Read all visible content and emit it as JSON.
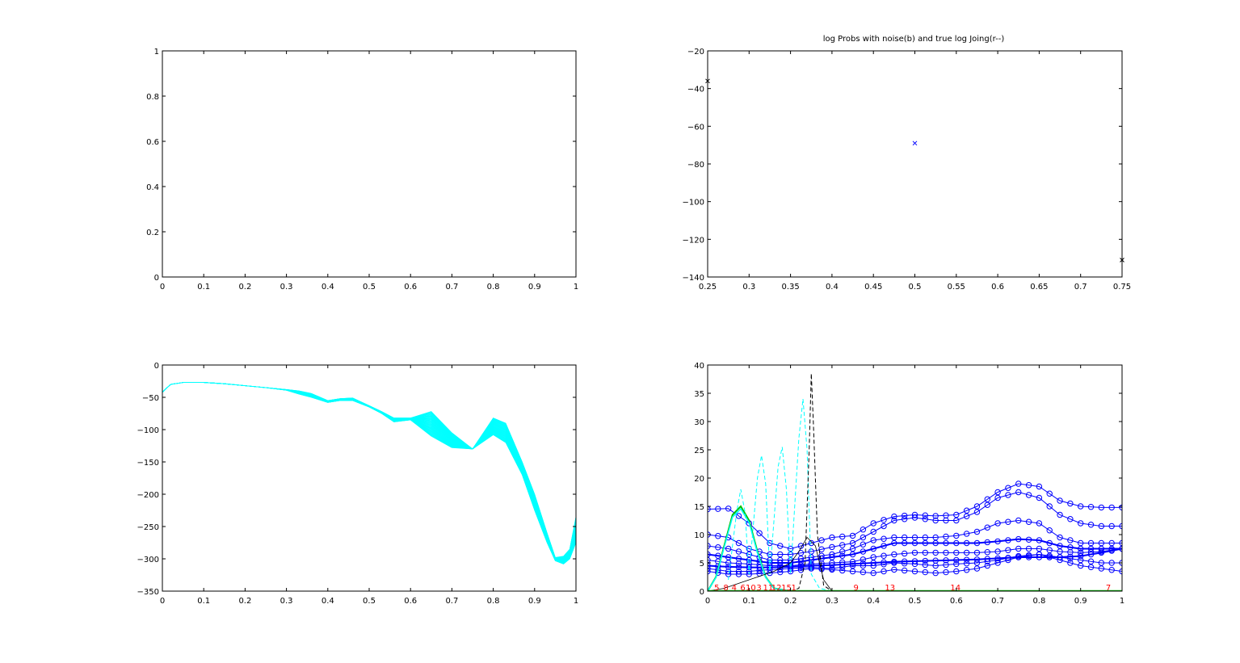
{
  "colors": {
    "axes": "#000000",
    "cyan": "#00ffff",
    "blue": "#0000ff",
    "green": "#00c000",
    "red": "#ff0000",
    "black": "#000000"
  },
  "chart_data": [
    {
      "id": "ax1",
      "type": "line",
      "title": "",
      "xlabel": "",
      "ylabel": "",
      "xlim": [
        0,
        1
      ],
      "ylim": [
        0,
        1
      ],
      "xticks": [
        0,
        0.1,
        0.2,
        0.3,
        0.4,
        0.5,
        0.6,
        0.7,
        0.8,
        0.9,
        1
      ],
      "xticklabels": [
        "0",
        "0.1",
        "0.2",
        "0.3",
        "0.4",
        "0.5",
        "0.6",
        "0.7",
        "0.8",
        "0.9",
        "1"
      ],
      "yticks": [
        0,
        0.2,
        0.4,
        0.6,
        0.8,
        1
      ],
      "yticklabels": [
        "0",
        "0.2",
        "0.4",
        "0.6",
        "0.8",
        "1"
      ],
      "grid": false,
      "series": []
    },
    {
      "id": "ax2",
      "type": "scatter",
      "title": "log Probs with noise(b) and true log Joing(r--)",
      "xlabel": "",
      "ylabel": "",
      "xlim": [
        0.25,
        0.75
      ],
      "ylim": [
        -140,
        -20
      ],
      "xticks": [
        0.25,
        0.3,
        0.35,
        0.4,
        0.45,
        0.5,
        0.55,
        0.6,
        0.65,
        0.7,
        0.75
      ],
      "xticklabels": [
        "0.25",
        "0.3",
        "0.35",
        "0.4",
        "0.45",
        "0.5",
        "0.55",
        "0.6",
        "0.65",
        "0.7",
        "0.75"
      ],
      "yticks": [
        -140,
        -120,
        -100,
        -80,
        -60,
        -40,
        -20
      ],
      "yticklabels": [
        "−140",
        "−120",
        "−100",
        "−80",
        "−60",
        "−40",
        "−20"
      ],
      "grid": false,
      "series": [
        {
          "color": "black",
          "marker": "x",
          "x": [
            0.25,
            0.75
          ],
          "y": [
            -36,
            -131
          ]
        },
        {
          "color": "blue",
          "marker": "x",
          "x": [
            0.5
          ],
          "y": [
            -69
          ]
        }
      ]
    },
    {
      "id": "ax3",
      "type": "line",
      "title": "",
      "xlabel": "",
      "ylabel": "",
      "xlim": [
        0,
        1
      ],
      "ylim": [
        -350,
        0
      ],
      "xticks": [
        0,
        0.1,
        0.2,
        0.3,
        0.4,
        0.5,
        0.6,
        0.7,
        0.8,
        0.9,
        1
      ],
      "xticklabels": [
        "0",
        "0.1",
        "0.2",
        "0.3",
        "0.4",
        "0.5",
        "0.6",
        "0.7",
        "0.8",
        "0.9",
        "1"
      ],
      "yticks": [
        -350,
        -300,
        -250,
        -200,
        -150,
        -100,
        -50,
        0
      ],
      "yticklabels": [
        "−350",
        "−300",
        "−250",
        "−200",
        "−150",
        "−100",
        "−50",
        "0"
      ],
      "grid": false,
      "band": {
        "color": "cyan",
        "count": 40,
        "x": [
          0,
          0.02,
          0.05,
          0.1,
          0.15,
          0.2,
          0.25,
          0.3,
          0.33,
          0.36,
          0.4,
          0.43,
          0.46,
          0.5,
          0.53,
          0.56,
          0.6,
          0.65,
          0.7,
          0.75,
          0.8,
          0.83,
          0.87,
          0.9,
          0.93,
          0.95,
          0.97,
          0.985,
          1
        ],
        "lower": [
          -42,
          -30,
          -27,
          -27,
          -29,
          -32,
          -35,
          -39,
          -45,
          -50,
          -58,
          -55,
          -55,
          -65,
          -75,
          -88,
          -85,
          -110,
          -128,
          -130,
          -108,
          -120,
          -170,
          -225,
          -275,
          -303,
          -308,
          -300,
          -275
        ],
        "upper": [
          -42,
          -30,
          -27,
          -27,
          -29,
          -32,
          -35,
          -38,
          -40,
          -44,
          -55,
          -52,
          -51,
          -63,
          -72,
          -82,
          -82,
          -72,
          -105,
          -130,
          -82,
          -90,
          -150,
          -200,
          -260,
          -298,
          -296,
          -285,
          -235
        ]
      }
    },
    {
      "id": "ax4",
      "type": "line",
      "title": "",
      "xlabel": "",
      "ylabel": "",
      "xlim": [
        0,
        1
      ],
      "ylim": [
        0,
        40
      ],
      "xticks": [
        0,
        0.1,
        0.2,
        0.3,
        0.4,
        0.5,
        0.6,
        0.7,
        0.8,
        0.9,
        1
      ],
      "xticklabels": [
        "0",
        "0.1",
        "0.2",
        "0.3",
        "0.4",
        "0.5",
        "0.6",
        "0.7",
        "0.8",
        "0.9",
        "1"
      ],
      "yticks": [
        0,
        5,
        10,
        15,
        20,
        25,
        30,
        35,
        40
      ],
      "yticklabels": [
        "0",
        "5",
        "10",
        "15",
        "20",
        "25",
        "30",
        "35",
        "40"
      ],
      "grid": false,
      "blue_curves": {
        "x": [
          0,
          0.05,
          0.1,
          0.15,
          0.2,
          0.25,
          0.3,
          0.35,
          0.4,
          0.45,
          0.5,
          0.55,
          0.6,
          0.65,
          0.7,
          0.75,
          0.8,
          0.85,
          0.9,
          0.95,
          1
        ],
        "series": [
          [
            14.5,
            14.6,
            12.0,
            8.5,
            7.5,
            8.5,
            9.5,
            9.8,
            12.0,
            13.2,
            13.5,
            13.3,
            13.5,
            15.0,
            17.5,
            19.0,
            18.5,
            16.0,
            15.0,
            14.8,
            14.8
          ],
          [
            10.0,
            9.5,
            7.5,
            6.5,
            6.5,
            7.0,
            7.8,
            8.5,
            10.5,
            12.5,
            13.0,
            12.5,
            12.5,
            14.0,
            16.5,
            17.5,
            16.5,
            13.5,
            12.0,
            11.5,
            11.5
          ],
          [
            8.0,
            7.5,
            6.5,
            5.5,
            5.5,
            6.0,
            6.5,
            7.5,
            9.0,
            9.5,
            9.5,
            9.5,
            9.8,
            10.5,
            12.0,
            12.5,
            12.0,
            9.5,
            8.5,
            8.5,
            8.5
          ],
          [
            6.5,
            6.0,
            5.5,
            5.0,
            5.0,
            5.5,
            6.0,
            6.5,
            7.5,
            8.5,
            8.5,
            8.5,
            8.5,
            8.5,
            8.8,
            9.2,
            9.0,
            8.0,
            7.5,
            7.5,
            7.5
          ],
          [
            5.5,
            5.0,
            4.8,
            4.5,
            4.5,
            4.8,
            5.0,
            5.2,
            6.0,
            6.5,
            6.8,
            6.8,
            6.8,
            6.8,
            7.0,
            7.5,
            7.5,
            7.0,
            6.8,
            7.0,
            7.5
          ],
          [
            4.5,
            4.3,
            4.2,
            4.2,
            4.3,
            4.5,
            4.6,
            4.8,
            5.0,
            5.2,
            5.3,
            5.4,
            5.5,
            5.6,
            5.8,
            6.0,
            6.0,
            6.0,
            6.2,
            6.8,
            7.5
          ],
          [
            4.0,
            3.5,
            3.5,
            3.8,
            4.0,
            4.2,
            4.0,
            4.5,
            4.5,
            5.0,
            4.8,
            4.5,
            4.8,
            5.0,
            5.5,
            6.2,
            6.5,
            6.0,
            5.5,
            5.0,
            5.0
          ],
          [
            3.5,
            3.0,
            3.0,
            3.2,
            3.5,
            4.0,
            3.8,
            3.5,
            3.2,
            3.8,
            3.5,
            3.2,
            3.5,
            4.0,
            5.0,
            6.0,
            6.5,
            5.5,
            4.5,
            4.0,
            3.5
          ]
        ]
      },
      "green_curve": {
        "color": "green",
        "x": [
          0,
          0.02,
          0.04,
          0.06,
          0.08,
          0.1,
          0.12,
          0.14,
          0.16,
          0.2,
          1
        ],
        "y": [
          0,
          2.5,
          8,
          13.5,
          15,
          12.5,
          7,
          2.5,
          0.5,
          0,
          0
        ]
      },
      "cyan_dashed": {
        "color": "cyan",
        "x": [
          0.05,
          0.07,
          0.08,
          0.09,
          0.1,
          0.12,
          0.13,
          0.14,
          0.15,
          0.17,
          0.18,
          0.19,
          0.2,
          0.22,
          0.23,
          0.24,
          0.25,
          0.27,
          0.3
        ],
        "y": [
          2,
          14,
          18,
          14,
          3,
          20,
          24,
          19,
          3,
          22,
          25.5,
          18,
          3,
          27,
          34,
          25,
          3,
          0.5,
          0
        ]
      },
      "black_dashed": {
        "color": "black",
        "x": [
          0.2,
          0.22,
          0.235,
          0.245,
          0.25,
          0.255,
          0.265,
          0.28,
          0.3
        ],
        "y": [
          0,
          0.5,
          5,
          25,
          38.5,
          30,
          10,
          1,
          0
        ]
      },
      "black_solid": {
        "color": "black",
        "x": [
          0.0,
          0.04,
          0.08,
          0.12,
          0.16,
          0.2,
          0.22,
          0.24,
          0.26,
          0.28,
          0.3
        ],
        "y": [
          0,
          0.5,
          1.5,
          2.5,
          3.5,
          5,
          7,
          9.5,
          8,
          2,
          0
        ]
      },
      "red_labels": {
        "color": "red",
        "items": [
          {
            "x": 0.022,
            "text": "5"
          },
          {
            "x": 0.044,
            "text": "8"
          },
          {
            "x": 0.064,
            "text": "4"
          },
          {
            "x": 0.085,
            "text": "6"
          },
          {
            "x": 0.104,
            "text": "10"
          },
          {
            "x": 0.124,
            "text": "3"
          },
          {
            "x": 0.146,
            "text": "11"
          },
          {
            "x": 0.166,
            "text": "12"
          },
          {
            "x": 0.19,
            "text": "15"
          },
          {
            "x": 0.208,
            "text": "1"
          },
          {
            "x": 0.358,
            "text": "9"
          },
          {
            "x": 0.44,
            "text": "13"
          },
          {
            "x": 0.598,
            "text": "14"
          },
          {
            "x": 0.967,
            "text": "7"
          }
        ]
      }
    }
  ]
}
